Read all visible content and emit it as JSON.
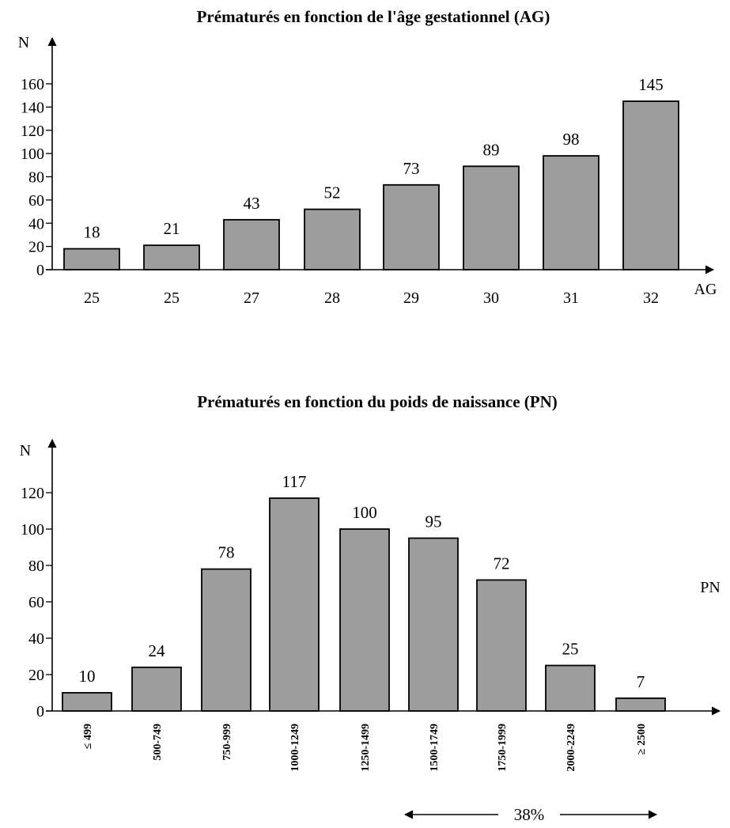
{
  "chart_data": [
    {
      "type": "bar",
      "title": "Prématurés en fonction de l'âge gestationnel (AG)",
      "xlabel": "AG",
      "ylabel": "N",
      "categories": [
        "25",
        "25",
        "27",
        "28",
        "29",
        "30",
        "31",
        "32"
      ],
      "values": [
        18,
        21,
        43,
        52,
        73,
        89,
        98,
        145
      ],
      "value_labels": [
        "18",
        "21",
        "43",
        "52",
        "73",
        "89",
        "98",
        "145"
      ],
      "yticks": [
        "0",
        "20",
        "40",
        "60",
        "80",
        "100",
        "120",
        "140",
        "160"
      ],
      "ylim": [
        0,
        160
      ],
      "grid": false,
      "bar_color": "#9d9d9d"
    },
    {
      "type": "bar",
      "title": "Prématurés en fonction du poids de naissance (PN)",
      "xlabel": "PN",
      "ylabel": "N",
      "categories": [
        "≤ 499",
        "500-749",
        "750-999",
        "1000-1249",
        "1250-1499",
        "1500-1749",
        "1750-1999",
        "2000-2249",
        "≥ 2500"
      ],
      "values": [
        10,
        24,
        78,
        117,
        100,
        95,
        72,
        25,
        7
      ],
      "value_labels": [
        "10",
        "24",
        "78",
        "117",
        "100",
        "95",
        "72",
        "25",
        "7"
      ],
      "yticks": [
        "0",
        "20",
        "40",
        "60",
        "80",
        "100",
        "120"
      ],
      "ylim": [
        0,
        120
      ],
      "grid": false,
      "bar_color": "#9d9d9d",
      "annotation": "38%"
    }
  ]
}
